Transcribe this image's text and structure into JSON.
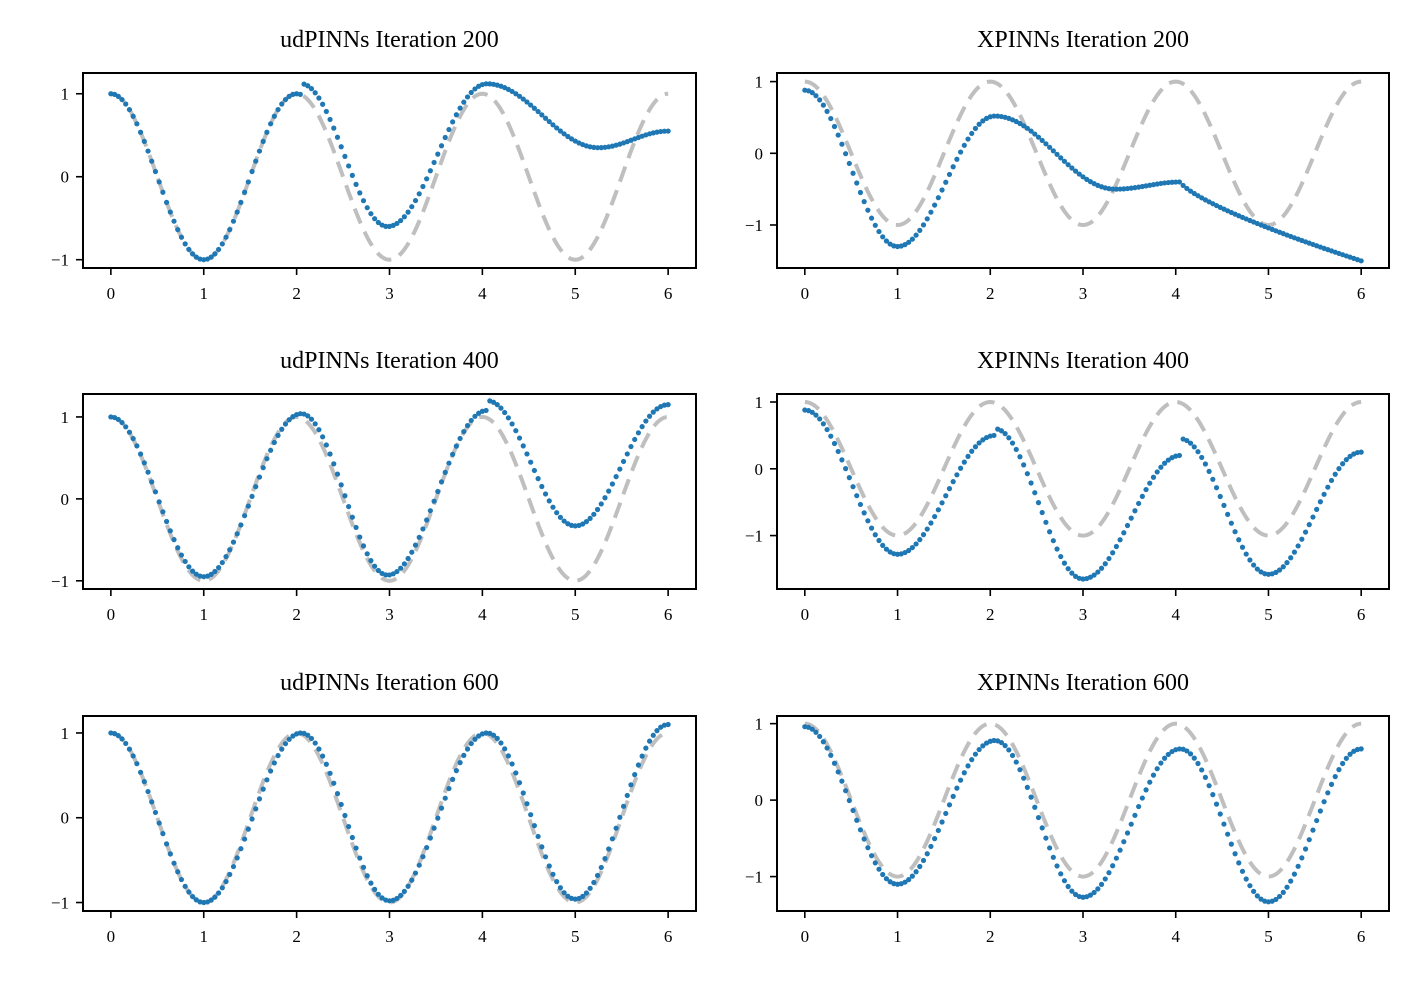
{
  "chart_data": [
    {
      "type": "scatter",
      "title": "udPINNs Iteration 200",
      "xlim": [
        -0.3,
        6.3
      ],
      "ylim": [
        -1.1,
        1.25
      ],
      "xticks": [
        0,
        1,
        2,
        3,
        4,
        5,
        6
      ],
      "yticks": [
        {
          "v": 1,
          "label": "1"
        },
        {
          "v": 0,
          "label": "0"
        },
        {
          "v": -1,
          "label": "−1"
        }
      ],
      "reference": {
        "style": "dashed",
        "color": "#bfbfbf",
        "function": "cos(pi*x)"
      },
      "prediction": {
        "color": "#1f77b4",
        "n_points": 151,
        "segments": [
          {
            "x0": 0,
            "x1": 2.05,
            "shape": "cos",
            "min_y": -1.0
          },
          {
            "x0": 2.05,
            "x1": 4.05,
            "shape": "dip",
            "y0": 1.12,
            "ymin": -0.6,
            "xmin": 2.98,
            "y1": 1.12
          },
          {
            "x0": 4.05,
            "x1": 6.0,
            "shape": "dip",
            "y0": 1.12,
            "ymin": 0.35,
            "xmin": 5.25,
            "y1": 0.55
          }
        ]
      }
    },
    {
      "type": "scatter",
      "title": "XPINNs Iteration 200",
      "xlim": [
        -0.3,
        6.3
      ],
      "ylim": [
        -1.6,
        1.12
      ],
      "xticks": [
        0,
        1,
        2,
        3,
        4,
        5,
        6
      ],
      "yticks": [
        {
          "v": 1,
          "label": "1"
        },
        {
          "v": 0,
          "label": "0"
        },
        {
          "v": -1,
          "label": "−1"
        }
      ],
      "reference": {
        "style": "dashed",
        "color": "#bfbfbf",
        "function": "cos(pi*x)"
      },
      "prediction": {
        "color": "#1f77b4",
        "n_points": 151,
        "segments": [
          {
            "x0": 0,
            "x1": 2.05,
            "shape": "dip",
            "y0": 0.88,
            "ymin": -1.3,
            "xmin": 1.0,
            "y1": 0.52
          },
          {
            "x0": 2.05,
            "x1": 4.05,
            "shape": "dip",
            "y0": 0.52,
            "ymin": -0.5,
            "xmin": 3.35,
            "y1": -0.4
          },
          {
            "x0": 4.05,
            "x1": 6.0,
            "shape": "decay",
            "y0": -0.4,
            "y1": -1.5
          }
        ]
      }
    },
    {
      "type": "scatter",
      "title": "udPINNs Iteration 400",
      "xlim": [
        -0.3,
        6.3
      ],
      "ylim": [
        -1.1,
        1.28
      ],
      "xticks": [
        0,
        1,
        2,
        3,
        4,
        5,
        6
      ],
      "yticks": [
        {
          "v": 1,
          "label": "1"
        },
        {
          "v": 0,
          "label": "0"
        },
        {
          "v": -1,
          "label": "−1"
        }
      ],
      "reference": {
        "style": "dashed",
        "color": "#bfbfbf",
        "function": "cos(pi*x)"
      },
      "prediction": {
        "color": "#1f77b4",
        "n_points": 151,
        "segments": [
          {
            "x0": 0,
            "x1": 2.05,
            "shape": "dip",
            "y0": 1.0,
            "ymin": -0.95,
            "xmin": 1.0,
            "y1": 1.04
          },
          {
            "x0": 2.05,
            "x1": 4.05,
            "shape": "dip",
            "y0": 1.04,
            "ymin": -0.93,
            "xmin": 2.98,
            "y1": 1.08
          },
          {
            "x0": 4.05,
            "x1": 6.0,
            "shape": "dip",
            "y0": 1.2,
            "ymin": -0.33,
            "xmin": 5.0,
            "y1": 1.15
          }
        ]
      }
    },
    {
      "type": "scatter",
      "title": "XPINNs Iteration 400",
      "xlim": [
        -0.3,
        6.3
      ],
      "ylim": [
        -1.8,
        1.12
      ],
      "xticks": [
        0,
        1,
        2,
        3,
        4,
        5,
        6
      ],
      "yticks": [
        {
          "v": 1,
          "label": "1"
        },
        {
          "v": 0,
          "label": "0"
        },
        {
          "v": -1,
          "label": "−1"
        }
      ],
      "reference": {
        "style": "dashed",
        "color": "#bfbfbf",
        "function": "cos(pi*x)"
      },
      "prediction": {
        "color": "#1f77b4",
        "n_points": 151,
        "segments": [
          {
            "x0": 0,
            "x1": 2.05,
            "shape": "dip",
            "y0": 0.88,
            "ymin": -1.28,
            "xmin": 1.0,
            "y1": 0.5
          },
          {
            "x0": 2.05,
            "x1": 4.05,
            "shape": "dip",
            "y0": 0.6,
            "ymin": -1.65,
            "xmin": 3.0,
            "y1": 0.2
          },
          {
            "x0": 4.05,
            "x1": 6.0,
            "shape": "dip",
            "y0": 0.45,
            "ymin": -1.58,
            "xmin": 5.0,
            "y1": 0.25
          }
        ]
      }
    },
    {
      "type": "scatter",
      "title": "udPINNs Iteration 600",
      "xlim": [
        -0.3,
        6.3
      ],
      "ylim": [
        -1.1,
        1.2
      ],
      "xticks": [
        0,
        1,
        2,
        3,
        4,
        5,
        6
      ],
      "yticks": [
        {
          "v": 1,
          "label": "1"
        },
        {
          "v": 0,
          "label": "0"
        },
        {
          "v": -1,
          "label": "−1"
        }
      ],
      "reference": {
        "style": "dashed",
        "color": "#bfbfbf",
        "function": "cos(pi*x)"
      },
      "prediction": {
        "color": "#1f77b4",
        "n_points": 151,
        "segments": [
          {
            "x0": 0,
            "x1": 2.05,
            "shape": "dip",
            "y0": 1.0,
            "ymin": -1.0,
            "xmin": 1.0,
            "y1": 1.0
          },
          {
            "x0": 2.05,
            "x1": 4.05,
            "shape": "dip",
            "y0": 1.0,
            "ymin": -0.98,
            "xmin": 3.0,
            "y1": 1.0
          },
          {
            "x0": 4.05,
            "x1": 6.0,
            "shape": "dip",
            "y0": 1.0,
            "ymin": -0.96,
            "xmin": 5.0,
            "y1": 1.1
          }
        ]
      }
    },
    {
      "type": "scatter",
      "title": "XPINNs Iteration 600",
      "xlim": [
        -0.3,
        6.3
      ],
      "ylim": [
        -1.45,
        1.1
      ],
      "xticks": [
        0,
        1,
        2,
        3,
        4,
        5,
        6
      ],
      "yticks": [
        {
          "v": 1,
          "label": "1"
        },
        {
          "v": 0,
          "label": "0"
        },
        {
          "v": -1,
          "label": "−1"
        }
      ],
      "reference": {
        "style": "dashed",
        "color": "#bfbfbf",
        "function": "cos(pi*x)"
      },
      "prediction": {
        "color": "#1f77b4",
        "n_points": 151,
        "segments": [
          {
            "x0": 0,
            "x1": 2.05,
            "shape": "dip",
            "y0": 0.96,
            "ymin": -1.1,
            "xmin": 1.0,
            "y1": 0.78
          },
          {
            "x0": 2.05,
            "x1": 4.05,
            "shape": "dip",
            "y0": 0.78,
            "ymin": -1.27,
            "xmin": 3.0,
            "y1": 0.67
          },
          {
            "x0": 4.05,
            "x1": 6.0,
            "shape": "dip",
            "y0": 0.67,
            "ymin": -1.33,
            "xmin": 5.0,
            "y1": 0.67
          }
        ]
      }
    }
  ]
}
